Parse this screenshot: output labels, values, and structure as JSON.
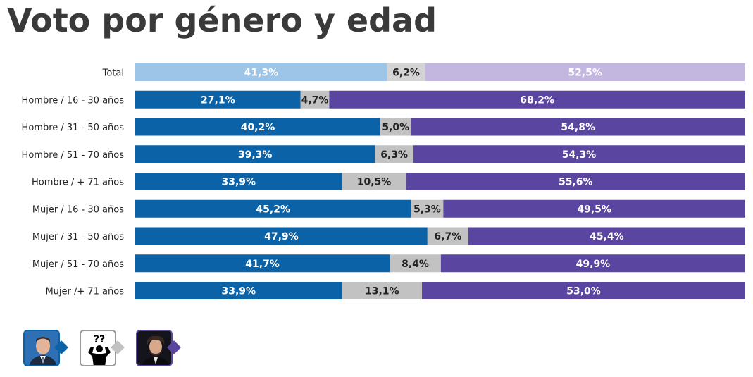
{
  "title": "Voto por género y edad",
  "colors": {
    "total_left": "#9dc5e8",
    "total_middle": "#d4d4d4",
    "total_right": "#c3b7e0",
    "left": "#0b62a6",
    "middle": "#c2c2c2",
    "right": "#5a46a0",
    "label_light": "#ffffff",
    "label_dark": "#222222"
  },
  "legend": [
    {
      "icon": "candidate-blue-photo-icon",
      "color": "#0b62a6"
    },
    {
      "icon": "undecided-question-icon",
      "color": "#c2c2c2"
    },
    {
      "icon": "candidate-purple-photo-icon",
      "color": "#5a46a0"
    }
  ],
  "chart_data": {
    "type": "bar",
    "orientation": "horizontal",
    "stacked": true,
    "title": "Voto por género y edad",
    "xlim": [
      0,
      100
    ],
    "grid": false,
    "categories": [
      "Total",
      "Hombre / 16 - 30 años",
      "Hombre / 31 - 50 años",
      "Hombre / 51 - 70 años",
      "Hombre / + 71 años",
      "Mujer / 16 - 30 años",
      "Mujer / 31 - 50 años",
      "Mujer / 51 - 70 años",
      "Mujer /+ 71 años"
    ],
    "series": [
      {
        "values": [
          41.3,
          27.1,
          40.2,
          39.3,
          33.9,
          45.2,
          47.9,
          41.7,
          33.9
        ],
        "labels": [
          "41,3%",
          "27,1%",
          "40,2%",
          "39,3%",
          "33,9%",
          "45,2%",
          "47,9%",
          "41,7%",
          "33,9%"
        ]
      },
      {
        "values": [
          6.2,
          4.7,
          5.0,
          6.3,
          10.5,
          5.3,
          6.7,
          8.4,
          13.1
        ],
        "labels": [
          "6,2%",
          "4,7%",
          "5,0%",
          "6,3%",
          "10,5%",
          "5,3%",
          "6,7%",
          "8,4%",
          "13,1%"
        ]
      },
      {
        "values": [
          52.5,
          68.2,
          54.8,
          54.3,
          55.6,
          49.5,
          45.4,
          49.9,
          53.0
        ],
        "labels": [
          "52,5%",
          "68,2%",
          "54,8%",
          "54,3%",
          "55,6%",
          "49,5%",
          "45,4%",
          "49,9%",
          "53,0%"
        ]
      }
    ]
  }
}
